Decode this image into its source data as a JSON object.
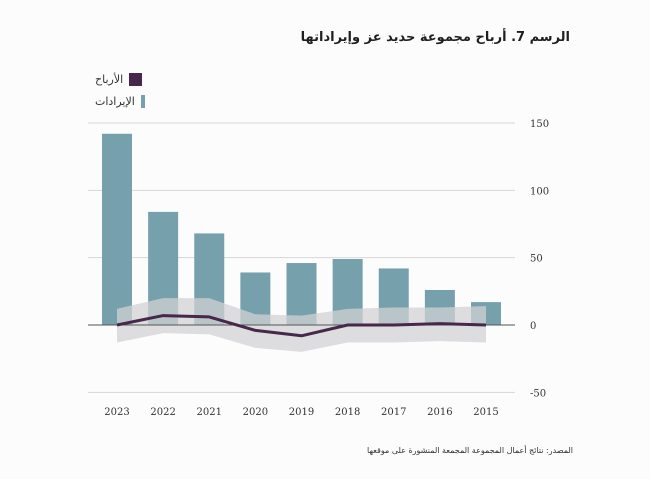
{
  "chart_data": {
    "type": "bar",
    "title": "الرسم 7. أرباح مجموعة حديد عز وإيراداتها",
    "source": "المصدر: نتائج أعمال المجموعة المجمعة المنشورة على موقعها",
    "categories": [
      "2023",
      "2022",
      "2021",
      "2020",
      "2019",
      "2018",
      "2017",
      "2016",
      "2015"
    ],
    "series": [
      {
        "name": "الإيرادات",
        "type": "bar",
        "color": "#76a0ab",
        "values": [
          142,
          84,
          68,
          39,
          46,
          49,
          42,
          26,
          17
        ]
      },
      {
        "name": "الأرباح",
        "type": "line",
        "color": "#47284a",
        "values": [
          0,
          7,
          6,
          -4,
          -8,
          0,
          0,
          1,
          0
        ]
      },
      {
        "name": "profit-band",
        "type": "area",
        "color": "#d2d2d4",
        "upper": [
          12,
          20,
          20,
          8,
          7,
          12,
          13,
          13,
          14
        ],
        "lower": [
          -13,
          -6,
          -7,
          -17,
          -20,
          -13,
          -13,
          -12,
          -13
        ]
      }
    ],
    "legend": [
      {
        "label": "الأرباح",
        "color": "#47284a"
      },
      {
        "label": "الإيرادات",
        "color": "#76a0ab"
      }
    ],
    "legend_position": "top-left",
    "yticks": [
      150,
      100,
      50,
      0,
      -50
    ],
    "ylim": [
      -50,
      150
    ],
    "y_axis_side": "right",
    "grid": true,
    "xlabel": "",
    "ylabel": ""
  }
}
